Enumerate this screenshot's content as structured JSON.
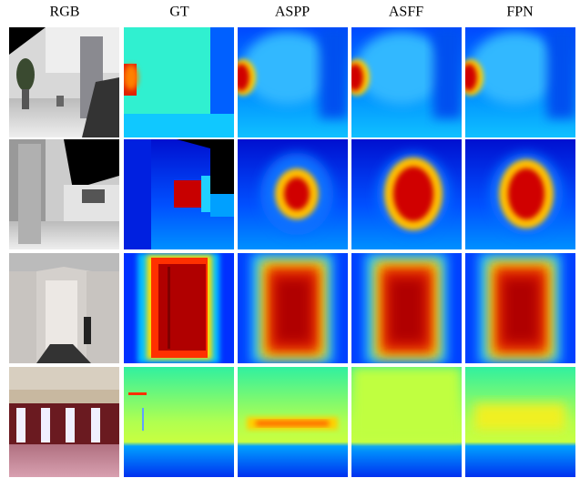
{
  "header": {
    "columns": [
      "RGB",
      "GT",
      "ASPP",
      "ASFF",
      "FPN"
    ]
  }
}
